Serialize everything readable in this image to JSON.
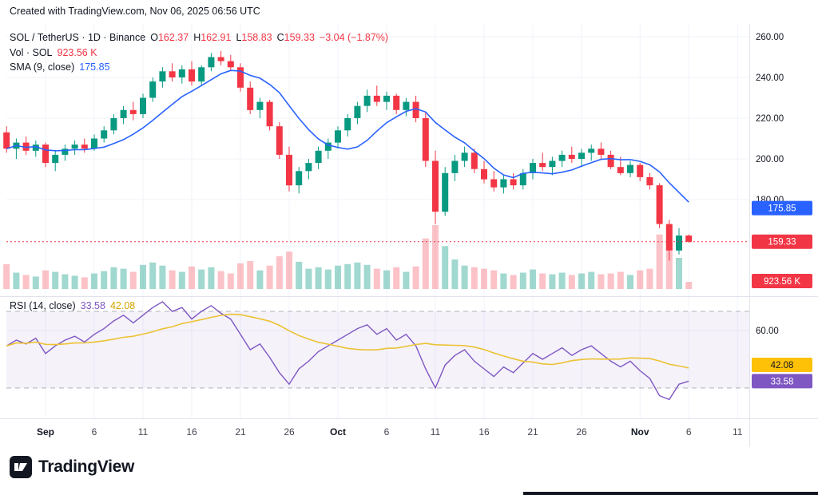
{
  "meta": {
    "creation_note": "Created with TradingView.com, Nov 06, 2025 06:56 UTC"
  },
  "legend": {
    "symbol": "SOL / TetherUS · 1D · Binance",
    "o_label": "O",
    "o": "162.37",
    "h_label": "H",
    "h": "162.91",
    "l_label": "L",
    "l": "158.83",
    "c_label": "C",
    "c": "159.33",
    "change": "−3.04 (−1.87%)",
    "vol_label": "Vol · SOL",
    "vol_value": "923.56 K",
    "sma_label": "SMA (9, close)",
    "sma_value": "175.85",
    "rsi_label": "RSI (14, close)",
    "rsi_value": "33.58",
    "rsi_ma_value": "42.08"
  },
  "colors": {
    "up": "#089981",
    "down": "#F23645",
    "vol_up": "rgba(8,153,129,0.38)",
    "vol_down": "rgba(242,54,69,0.30)",
    "sma": "#2962FF",
    "rsi": "#7E57C2",
    "rsi_ma": "#EDC233",
    "band_fill": "rgba(126,87,194,0.08)",
    "band_line": "#787B86",
    "grid": "#F0F3FA",
    "axis_text": "#131722",
    "badge_yellow": "#FFC107",
    "badge_purple": "#7E57C2",
    "separator": "#E0E3EB"
  },
  "axis": {
    "price_ticks": [
      260,
      240,
      220,
      200,
      180
    ],
    "rsi_ticks": [
      60
    ],
    "x_labels": [
      {
        "label": "Sep",
        "i": 4,
        "major": true
      },
      {
        "label": "6",
        "i": 9
      },
      {
        "label": "11",
        "i": 14
      },
      {
        "label": "16",
        "i": 19
      },
      {
        "label": "21",
        "i": 24
      },
      {
        "label": "26",
        "i": 29
      },
      {
        "label": "Oct",
        "i": 34,
        "major": true
      },
      {
        "label": "6",
        "i": 39
      },
      {
        "label": "11",
        "i": 44
      },
      {
        "label": "16",
        "i": 49
      },
      {
        "label": "21",
        "i": 54
      },
      {
        "label": "26",
        "i": 59
      },
      {
        "label": "Nov",
        "i": 65,
        "major": true
      },
      {
        "label": "6",
        "i": 70
      },
      {
        "label": "11",
        "i": 75
      }
    ]
  },
  "badges": {
    "sma": {
      "text": "175.85",
      "price": 175.85
    },
    "last": {
      "text": "159.33",
      "price": 159.33
    },
    "volume": {
      "text": "923.56 K"
    },
    "rsi_ma": {
      "text": "42.08",
      "value": 42.08
    },
    "rsi": {
      "text": "33.58",
      "value": 33.58
    }
  },
  "footer": {
    "brand": "TradingView"
  },
  "chart_data": {
    "type": "candlestick+volume+rsi",
    "symbol": "SOL/USDT",
    "exchange": "Binance",
    "interval": "1D",
    "x_start_date": "2025-08-28",
    "x_end_date": "2025-11-06",
    "price_axis_range": [
      138,
      262
    ],
    "last_price": 159.33,
    "sma_period": 9,
    "rsi_period": 14,
    "bands": {
      "upper": 70,
      "lower": 30
    },
    "ohlcv": [
      [
        213,
        216,
        203,
        205,
        3.2
      ],
      [
        205,
        210,
        200,
        208,
        2.1
      ],
      [
        208,
        211,
        202,
        204,
        1.8
      ],
      [
        204,
        209,
        201,
        207,
        1.6
      ],
      [
        207,
        208,
        196,
        198,
        2.4
      ],
      [
        198,
        204,
        194,
        202,
        2.2
      ],
      [
        202,
        207,
        199,
        205,
        1.9
      ],
      [
        205,
        209,
        202,
        207,
        1.7
      ],
      [
        207,
        210,
        203,
        205,
        1.5
      ],
      [
        205,
        212,
        204,
        210,
        2.0
      ],
      [
        210,
        216,
        208,
        214,
        2.3
      ],
      [
        214,
        222,
        212,
        220,
        2.8
      ],
      [
        220,
        226,
        217,
        224,
        2.6
      ],
      [
        224,
        228,
        219,
        222,
        2.2
      ],
      [
        222,
        232,
        220,
        230,
        3.1
      ],
      [
        230,
        240,
        228,
        238,
        3.4
      ],
      [
        238,
        245,
        235,
        243,
        3.0
      ],
      [
        243,
        247,
        238,
        240,
        2.4
      ],
      [
        240,
        246,
        237,
        244,
        2.2
      ],
      [
        244,
        248,
        236,
        238,
        2.9
      ],
      [
        238,
        246,
        236,
        245,
        2.5
      ],
      [
        245,
        252,
        243,
        250,
        2.8
      ],
      [
        250,
        253,
        246,
        248,
        2.3
      ],
      [
        248,
        251,
        243,
        245,
        2.0
      ],
      [
        245,
        247,
        233,
        235,
        3.3
      ],
      [
        235,
        238,
        222,
        224,
        3.6
      ],
      [
        224,
        230,
        220,
        228,
        2.4
      ],
      [
        228,
        229,
        214,
        216,
        3.0
      ],
      [
        216,
        218,
        200,
        202,
        4.2
      ],
      [
        202,
        206,
        184,
        187,
        4.8
      ],
      [
        187,
        196,
        183,
        194,
        3.5
      ],
      [
        194,
        200,
        190,
        198,
        2.6
      ],
      [
        198,
        206,
        195,
        204,
        2.8
      ],
      [
        204,
        210,
        200,
        208,
        2.5
      ],
      [
        208,
        216,
        205,
        214,
        3.0
      ],
      [
        214,
        222,
        211,
        220,
        3.2
      ],
      [
        220,
        228,
        217,
        226,
        3.4
      ],
      [
        226,
        234,
        223,
        231,
        3.1
      ],
      [
        231,
        236,
        226,
        228,
        2.6
      ],
      [
        228,
        233,
        224,
        231,
        2.4
      ],
      [
        231,
        232,
        222,
        224,
        2.8
      ],
      [
        224,
        230,
        221,
        228,
        2.2
      ],
      [
        228,
        231,
        218,
        220,
        2.9
      ],
      [
        220,
        223,
        196,
        199,
        6.5
      ],
      [
        199,
        204,
        168,
        174,
        8.2
      ],
      [
        174,
        196,
        172,
        193,
        5.5
      ],
      [
        193,
        202,
        189,
        199,
        3.8
      ],
      [
        199,
        206,
        196,
        203,
        3.0
      ],
      [
        203,
        205,
        193,
        195,
        2.8
      ],
      [
        195,
        199,
        188,
        190,
        2.6
      ],
      [
        190,
        194,
        184,
        186,
        2.4
      ],
      [
        186,
        192,
        183,
        190,
        2.0
      ],
      [
        190,
        193,
        185,
        187,
        1.8
      ],
      [
        187,
        195,
        185,
        193,
        2.1
      ],
      [
        193,
        200,
        190,
        198,
        2.5
      ],
      [
        198,
        203,
        194,
        196,
        2.0
      ],
      [
        196,
        201,
        192,
        199,
        1.9
      ],
      [
        199,
        204,
        196,
        202,
        2.1
      ],
      [
        202,
        206,
        198,
        200,
        1.8
      ],
      [
        200,
        205,
        196,
        203,
        2.0
      ],
      [
        203,
        207,
        199,
        205,
        2.2
      ],
      [
        205,
        208,
        200,
        202,
        1.9
      ],
      [
        202,
        204,
        195,
        196,
        2.0
      ],
      [
        196,
        201,
        192,
        193,
        2.2
      ],
      [
        193,
        199,
        191,
        197,
        1.8
      ],
      [
        197,
        198,
        189,
        191,
        2.4
      ],
      [
        191,
        193,
        185,
        187,
        2.6
      ],
      [
        187,
        188,
        166,
        168,
        7.0
      ],
      [
        168,
        170,
        150,
        155,
        6.0
      ],
      [
        155,
        166,
        153,
        162.37,
        4.0
      ],
      [
        162.37,
        162.91,
        158.83,
        159.33,
        0.92
      ]
    ],
    "rsi": [
      52,
      55,
      53,
      56,
      48,
      52,
      55,
      57,
      54,
      58,
      61,
      65,
      68,
      64,
      68,
      72,
      75,
      70,
      72,
      66,
      70,
      73,
      69,
      66,
      58,
      50,
      53,
      46,
      38,
      32,
      40,
      44,
      49,
      52,
      55,
      58,
      61,
      63,
      58,
      61,
      55,
      58,
      52,
      40,
      30,
      42,
      47,
      50,
      44,
      40,
      36,
      41,
      38,
      43,
      48,
      45,
      48,
      51,
      47,
      50,
      52,
      48,
      44,
      41,
      44,
      39,
      35,
      26,
      24,
      32,
      33.58
    ]
  }
}
